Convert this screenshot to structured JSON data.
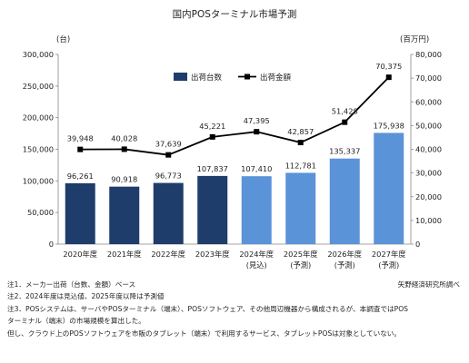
{
  "chart_data": {
    "type": "bar+line",
    "title": "国内POSターミナル市場予測",
    "categories": [
      "2020年度",
      "2021年度",
      "2022年度",
      "2023年度",
      "2024年度",
      "2025年度",
      "2026年度",
      "2027年度"
    ],
    "category_sublabels": [
      "",
      "",
      "",
      "",
      "(見込)",
      "(予測)",
      "(予測)",
      "(予測)"
    ],
    "left_axis": {
      "unit": "(台)",
      "ylim": [
        0,
        300000
      ],
      "ticks": [
        "0",
        "50,000",
        "100,000",
        "150,000",
        "200,000",
        "250,000",
        "300,000"
      ]
    },
    "right_axis": {
      "unit": "(百万円)",
      "ylim": [
        0,
        80000
      ],
      "ticks": [
        "0",
        "10,000",
        "20,000",
        "30,000",
        "40,000",
        "50,000",
        "60,000",
        "70,000",
        "80,000"
      ]
    },
    "series": [
      {
        "name": "出荷台数",
        "kind": "bar",
        "axis": "left",
        "values": [
          96261,
          90918,
          96773,
          107837,
          107410,
          112781,
          135337,
          175938
        ],
        "labels": [
          "96,261",
          "90,918",
          "96,773",
          "107,837",
          "107,410",
          "112,781",
          "135,337",
          "175,938"
        ],
        "colors": [
          "#1f3d6b",
          "#1f3d6b",
          "#1f3d6b",
          "#1f3d6b",
          "#5b93d8",
          "#5b93d8",
          "#5b93d8",
          "#5b93d8"
        ]
      },
      {
        "name": "出荷金額",
        "kind": "line",
        "axis": "right",
        "values": [
          39948,
          40028,
          37639,
          45221,
          47395,
          42857,
          51428,
          70375
        ],
        "labels": [
          "39,948",
          "40,028",
          "37,639",
          "45,221",
          "47,395",
          "42,857",
          "51,428",
          "70,375"
        ],
        "color": "#000000"
      }
    ],
    "legend_position": "top-left",
    "grid": false
  },
  "notes": [
    "注1．メーカー出荷（台数、金額）ベース",
    "注2．2024年度は見込値、2025年度以降は予測値",
    "注3．POSシステムは、サーバやPOSターミナル（端末）、POSソフトウェア、その他周辺機器から構成されるが、本調査ではPOS",
    "ターミナル（端末）の市場規模を算出した。",
    "但し、クラウド上のPOSソフトウェアを市販のタブレット（端末）で利用するサービス、タブレットPOSは対象としていない。"
  ],
  "credit": "矢野経済研究所調べ"
}
